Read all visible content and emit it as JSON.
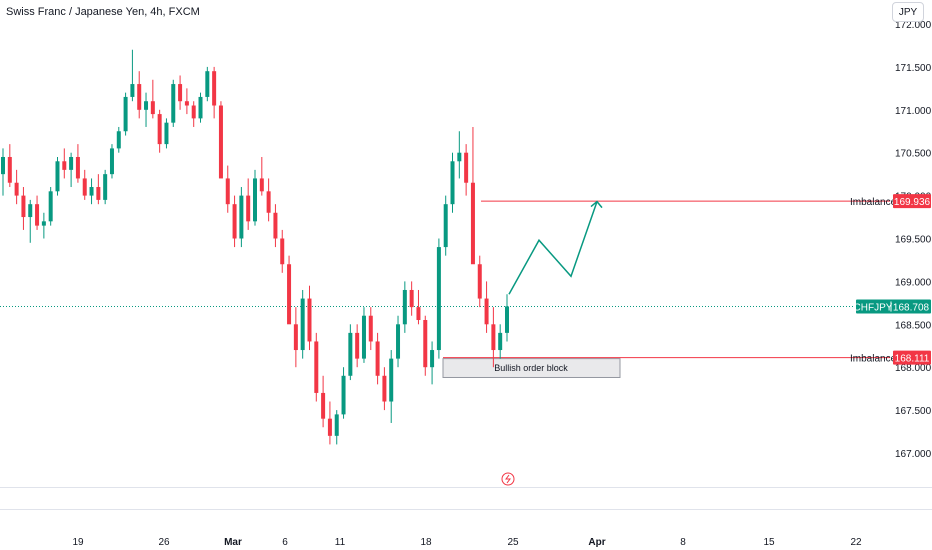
{
  "title": "Swiss Franc / Japanese Yen, 4h, FXCM",
  "currency_button": "JPY",
  "colors": {
    "up": "#089981",
    "down": "#f23645",
    "imbalance": "#f23645",
    "path": "#089981"
  },
  "chart_data": {
    "type": "candlestick",
    "symbol": "CHFJPY",
    "interval": "4h",
    "broker": "FXCM",
    "ylim": [
      166.75,
      172.1
    ],
    "x_ticks": [
      "19",
      "26",
      "Mar",
      "6",
      "11",
      "18",
      "25",
      "Apr",
      "8",
      "15",
      "22"
    ],
    "y_ticks": [
      "167.000",
      "167.500",
      "168.000",
      "168.500",
      "169.000",
      "169.500",
      "170.000",
      "170.500",
      "171.000",
      "171.500",
      "172.000"
    ],
    "last_price": {
      "label": "CHFJPY",
      "value": "168.708"
    },
    "levels": [
      {
        "label": "Imbalance",
        "value": "169.936"
      },
      {
        "label": "Imbalance",
        "value": "168.111"
      }
    ],
    "zones": [
      {
        "label": "Bullish order block",
        "from": 167.88,
        "to": 168.1
      }
    ],
    "projected_path": [
      168.85,
      169.48,
      169.06,
      169.93
    ],
    "series": [
      {
        "values": [
          [
            170.25,
            170.55,
            170.0,
            170.45
          ],
          [
            170.45,
            170.6,
            170.1,
            170.15
          ],
          [
            170.15,
            170.3,
            169.9,
            170.0
          ],
          [
            170.0,
            170.1,
            169.6,
            169.75
          ],
          [
            169.75,
            169.95,
            169.45,
            169.9
          ],
          [
            169.9,
            170.0,
            169.6,
            169.65
          ],
          [
            169.65,
            169.8,
            169.5,
            169.7
          ],
          [
            169.7,
            170.1,
            169.65,
            170.05
          ],
          [
            170.05,
            170.45,
            170.0,
            170.4
          ],
          [
            170.4,
            170.55,
            170.2,
            170.3
          ],
          [
            170.3,
            170.5,
            170.1,
            170.45
          ],
          [
            170.45,
            170.6,
            170.15,
            170.2
          ],
          [
            170.2,
            170.3,
            169.95,
            170.0
          ],
          [
            170.0,
            170.2,
            169.9,
            170.1
          ],
          [
            170.1,
            170.25,
            169.9,
            169.95
          ],
          [
            169.95,
            170.3,
            169.9,
            170.25
          ],
          [
            170.25,
            170.6,
            170.2,
            170.55
          ],
          [
            170.55,
            170.8,
            170.5,
            170.75
          ],
          [
            170.75,
            171.2,
            170.7,
            171.15
          ],
          [
            171.15,
            171.7,
            171.1,
            171.3
          ],
          [
            171.3,
            171.45,
            170.9,
            171.0
          ],
          [
            171.0,
            171.2,
            170.8,
            171.1
          ],
          [
            171.1,
            171.35,
            170.9,
            170.95
          ],
          [
            170.95,
            171.0,
            170.5,
            170.6
          ],
          [
            170.6,
            170.9,
            170.55,
            170.85
          ],
          [
            170.85,
            171.35,
            170.8,
            171.3
          ],
          [
            171.3,
            171.4,
            171.0,
            171.1
          ],
          [
            171.1,
            171.25,
            170.95,
            171.05
          ],
          [
            171.05,
            171.1,
            170.8,
            170.9
          ],
          [
            170.9,
            171.2,
            170.85,
            171.15
          ],
          [
            171.15,
            171.5,
            171.1,
            171.45
          ],
          [
            171.45,
            171.5,
            170.9,
            171.05
          ],
          [
            171.05,
            171.1,
            170.4,
            170.2
          ],
          [
            170.2,
            170.35,
            169.8,
            169.9
          ],
          [
            169.9,
            170.0,
            169.4,
            169.5
          ],
          [
            169.5,
            170.1,
            169.4,
            170.0
          ],
          [
            170.0,
            170.2,
            169.6,
            169.7
          ],
          [
            169.7,
            170.3,
            169.65,
            170.2
          ],
          [
            170.2,
            170.45,
            170.0,
            170.05
          ],
          [
            170.05,
            170.2,
            169.7,
            169.8
          ],
          [
            169.8,
            169.9,
            169.4,
            169.5
          ],
          [
            169.5,
            169.6,
            169.1,
            169.2
          ],
          [
            169.2,
            169.3,
            168.6,
            168.5
          ],
          [
            168.5,
            168.7,
            168.0,
            168.2
          ],
          [
            168.2,
            168.9,
            168.1,
            168.8
          ],
          [
            168.8,
            168.95,
            168.2,
            168.3
          ],
          [
            168.3,
            168.4,
            167.6,
            167.7
          ],
          [
            167.7,
            167.9,
            167.3,
            167.4
          ],
          [
            167.4,
            167.6,
            167.1,
            167.2
          ],
          [
            167.2,
            167.5,
            167.1,
            167.45
          ],
          [
            167.45,
            168.0,
            167.4,
            167.9
          ],
          [
            167.9,
            168.5,
            167.85,
            168.4
          ],
          [
            168.4,
            168.5,
            168.0,
            168.1
          ],
          [
            168.1,
            168.7,
            168.05,
            168.6
          ],
          [
            168.6,
            168.7,
            168.2,
            168.3
          ],
          [
            168.3,
            168.4,
            167.8,
            167.9
          ],
          [
            167.9,
            168.0,
            167.5,
            167.6
          ],
          [
            167.6,
            168.2,
            167.35,
            168.1
          ],
          [
            168.1,
            168.6,
            168.0,
            168.5
          ],
          [
            168.5,
            169.0,
            168.4,
            168.9
          ],
          [
            168.9,
            169.0,
            168.6,
            168.7
          ],
          [
            168.7,
            168.9,
            168.5,
            168.55
          ],
          [
            168.55,
            168.6,
            167.9,
            168.0
          ],
          [
            168.0,
            168.3,
            167.8,
            168.2
          ],
          [
            168.2,
            169.5,
            168.1,
            169.4
          ],
          [
            169.4,
            170.0,
            169.3,
            169.9
          ],
          [
            169.9,
            170.5,
            169.8,
            170.4
          ],
          [
            170.4,
            170.75,
            170.2,
            170.5
          ],
          [
            170.5,
            170.6,
            170.0,
            170.15
          ],
          [
            170.15,
            170.8,
            169.3,
            169.2
          ],
          [
            169.2,
            169.3,
            168.7,
            168.8
          ],
          [
            168.8,
            169.0,
            168.4,
            168.5
          ],
          [
            168.5,
            168.7,
            168.0,
            168.2
          ],
          [
            168.2,
            168.5,
            168.1,
            168.4
          ],
          [
            168.4,
            168.85,
            168.3,
            168.708
          ]
        ]
      }
    ]
  }
}
